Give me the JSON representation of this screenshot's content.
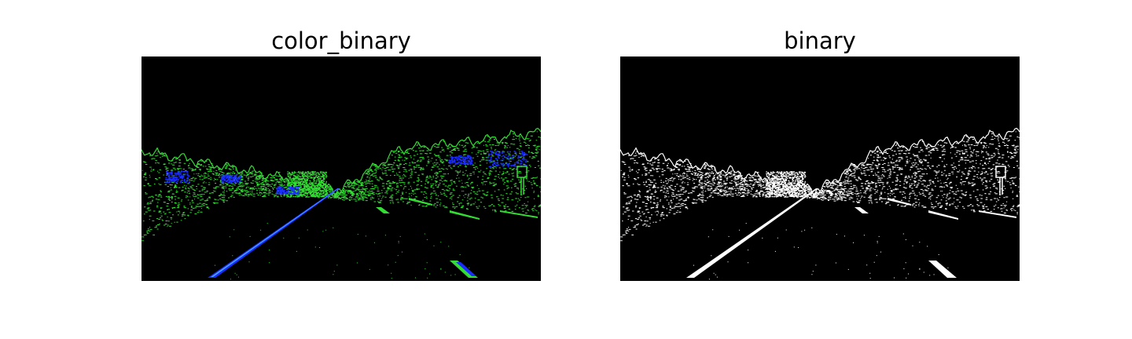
{
  "panels": [
    {
      "title": "color_binary",
      "colors": {
        "background": "#000000",
        "edge_channel": "#33dd33",
        "lane_channel": "#1a2cff",
        "lane_highlight": "#4aa8ff"
      }
    },
    {
      "title": "binary",
      "colors": {
        "background": "#000000",
        "foreground": "#ffffff"
      }
    }
  ]
}
